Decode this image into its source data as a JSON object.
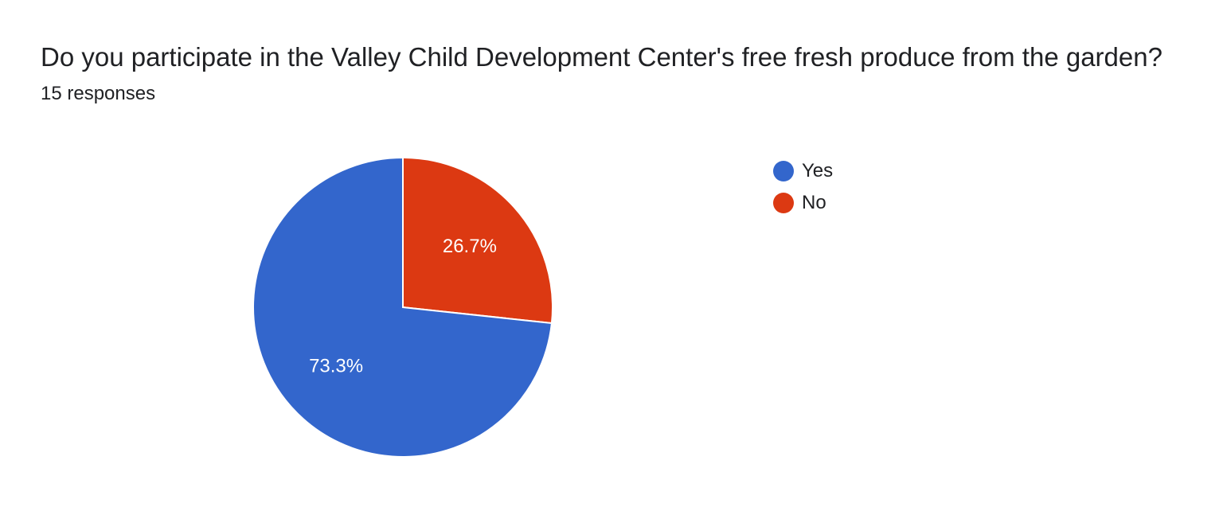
{
  "chart_data": {
    "type": "pie",
    "title": "Do you participate in the Valley Child Development Center's free fresh produce from the garden?",
    "subtitle": "15 responses",
    "slices": [
      {
        "label": "Yes",
        "value": 73.3,
        "display": "73.3%",
        "color": "#3366cc"
      },
      {
        "label": "No",
        "value": 26.7,
        "display": "26.7%",
        "color": "#dc3912"
      }
    ],
    "legend_position": "right"
  }
}
